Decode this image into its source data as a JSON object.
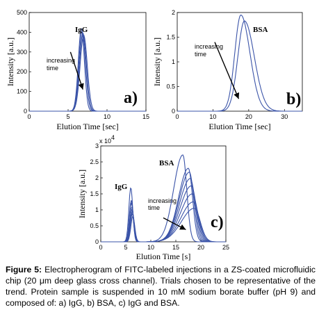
{
  "figure_colors": {
    "line": "#3a53a8",
    "axis": "#000000",
    "text": "#000000"
  },
  "caption": {
    "label": "Figure 5:",
    "text": "Electropherogram of FITC-labeled injections in a ZS-coated microfluidic chip (20 μm deep glass cross channel). Trials chosen to be representative of the trend. Protein sample is suspended in 10 mM sodium borate buffer (pH 9) and composed of: a) IgG, b) BSA, c) IgG and BSA."
  },
  "chart_data": [
    {
      "panel": "a)",
      "type": "line",
      "xlabel": "Elution Time [sec]",
      "ylabel": "Intensity [a.u.]",
      "xlim": [
        0,
        15
      ],
      "ylim": [
        0,
        500
      ],
      "xticks": [
        "0",
        "5",
        "10",
        "15"
      ],
      "yticks": [
        "0",
        "100",
        "200",
        "300",
        "400",
        "500"
      ],
      "series_label": "IgG",
      "annotation": "increasing time",
      "arrow": {
        "from": [
          5.3,
          300
        ],
        "to": [
          6.9,
          110
        ]
      },
      "series": [
        {
          "peak_x": 6.7,
          "peak_y": 420,
          "width": 0.55
        },
        {
          "peak_x": 6.8,
          "peak_y": 405,
          "width": 0.6
        },
        {
          "peak_x": 6.9,
          "peak_y": 395,
          "width": 0.62
        },
        {
          "peak_x": 7.0,
          "peak_y": 385,
          "width": 0.65
        }
      ]
    },
    {
      "panel": "b)",
      "type": "line",
      "xlabel": "Elution Time [sec]",
      "ylabel": "Intensity [a.u.]",
      "xlim": [
        0,
        35
      ],
      "ylim": [
        0,
        2
      ],
      "xticks": [
        "0",
        "10",
        "20",
        "30"
      ],
      "yticks": [
        "0",
        "0.5",
        "1",
        "1.5",
        "2"
      ],
      "y_multiplier": "",
      "series_label": "BSA",
      "annotation": "increasing time",
      "arrow": {
        "from": [
          10.5,
          1.4
        ],
        "to": [
          17.2,
          0.25
        ]
      },
      "series": [
        {
          "peak_x": 17.8,
          "peak_y": 1.95,
          "width_left": 2.4,
          "width_right": 3.6
        },
        {
          "peak_x": 18.8,
          "peak_y": 1.83,
          "width_left": 2.6,
          "width_right": 3.9
        }
      ]
    },
    {
      "panel": "c)",
      "type": "line",
      "xlabel": "Elution Time [s]",
      "ylabel": "Intensity [a.u.]",
      "xlim": [
        0,
        25
      ],
      "ylim": [
        0,
        3
      ],
      "xticks": [
        "0",
        "5",
        "10",
        "15",
        "20",
        "25"
      ],
      "yticks": [
        "0",
        "0.5",
        "1",
        "1.5",
        "2",
        "2.5",
        "3"
      ],
      "y_multiplier": "x 10",
      "y_exponent": "4",
      "series_labels": [
        "IgG",
        "BSA"
      ],
      "annotation": "increasing time",
      "arrow": {
        "from": [
          12.5,
          0.75
        ],
        "to": [
          17.0,
          0.38
        ]
      },
      "series": [
        {
          "igg_x": 6.0,
          "igg_y": 1.7,
          "bsa_x": 16.4,
          "bsa_y": 2.72
        },
        {
          "igg_x": 6.1,
          "igg_y": 1.3,
          "bsa_x": 17.5,
          "bsa_y": 2.3
        },
        {
          "igg_x": 6.1,
          "igg_y": 1.22,
          "bsa_x": 17.7,
          "bsa_y": 2.18
        },
        {
          "igg_x": 6.2,
          "igg_y": 1.1,
          "bsa_x": 17.9,
          "bsa_y": 1.98
        },
        {
          "igg_x": 6.2,
          "igg_y": 1.02,
          "bsa_x": 18.1,
          "bsa_y": 1.75
        },
        {
          "igg_x": 6.3,
          "igg_y": 0.95,
          "bsa_x": 18.3,
          "bsa_y": 1.5
        },
        {
          "igg_x": 6.3,
          "igg_y": 0.88,
          "bsa_x": 18.5,
          "bsa_y": 1.25
        },
        {
          "igg_x": 6.4,
          "igg_y": 0.8,
          "bsa_x": 18.7,
          "bsa_y": 1.05
        }
      ]
    }
  ]
}
